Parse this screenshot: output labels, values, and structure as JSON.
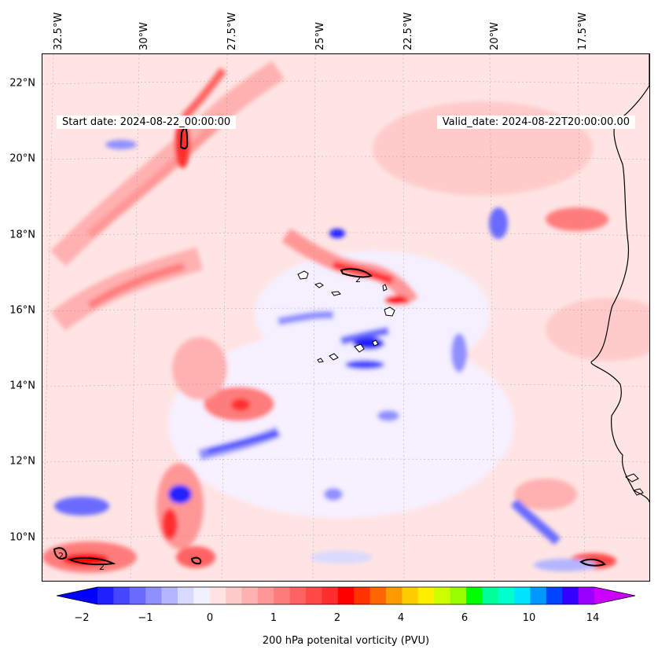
{
  "map": {
    "start_date_text": "Start date: 2024-08-22_00:00:00",
    "valid_date_text": "Valid_date: 2024-08-22T20:00:00.00",
    "longitude_labels": [
      "32.5°W",
      "30°W",
      "27.5°W",
      "25°W",
      "22.5°W",
      "20°W",
      "17.5°W"
    ],
    "latitude_labels": [
      "22°N",
      "20°N",
      "18°N",
      "16°N",
      "14°N",
      "12°N",
      "10°N"
    ],
    "contour_label": "2",
    "coastline_color": "#000000"
  },
  "colorbar": {
    "label": "200 hPa potenital vorticity (PVU)",
    "tick_labels": [
      "−2",
      "−1",
      "0",
      "1",
      "2",
      "4",
      "6",
      "10",
      "14"
    ],
    "colors": [
      "#0000ff",
      "#2020ff",
      "#4646ff",
      "#6a6aff",
      "#8f8fff",
      "#b4b4ff",
      "#d9d9ff",
      "#f0f0ff",
      "#ffe4e4",
      "#ffcaca",
      "#ffb0b0",
      "#ff9696",
      "#ff7c7c",
      "#ff6262",
      "#ff4848",
      "#ff2e2e",
      "#ff0000",
      "#ff3300",
      "#ff6600",
      "#ff9900",
      "#ffcc00",
      "#ffee00",
      "#ccff00",
      "#99ff00",
      "#00ff00",
      "#00ff99",
      "#00ffcc",
      "#00e5ff",
      "#0099ff",
      "#0044ff",
      "#3300ff",
      "#9900ff",
      "#cc00ff"
    ]
  }
}
